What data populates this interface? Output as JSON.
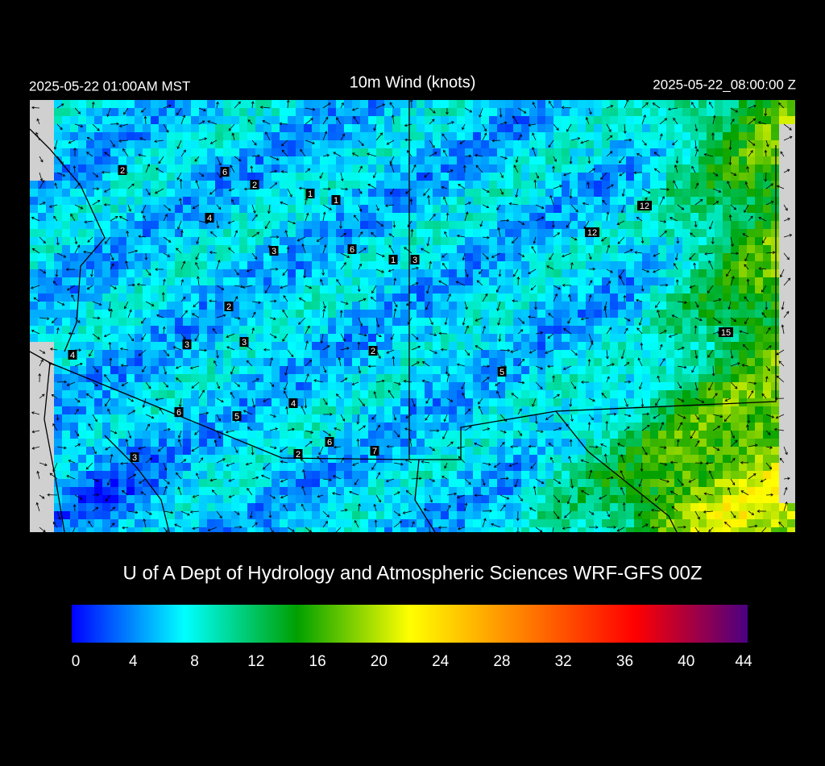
{
  "header": {
    "title": "10m Wind (knots)",
    "local_time": "2025-05-22 01:00AM MST",
    "utc_time": "2025-05-22_08:00:00 Z"
  },
  "map": {
    "stations": [
      2,
      6,
      2,
      1,
      1,
      4,
      3,
      6,
      1,
      3,
      12,
      12,
      2,
      3,
      3,
      2,
      4,
      5,
      15,
      4,
      6,
      5,
      6,
      2,
      7,
      3
    ]
  },
  "credit": "U of A Dept of Hydrology and Atmospheric Sciences WRF-GFS 00Z",
  "colorbar": {
    "lim": [
      0,
      44
    ],
    "ticks": [
      0,
      4,
      8,
      12,
      16,
      20,
      24,
      28,
      32,
      36,
      40,
      44
    ],
    "colors": [
      "#0000ff",
      "#00ffff",
      "#00a000",
      "#ffff00",
      "#ff8000",
      "#ff0000",
      "#4b0082"
    ]
  }
}
